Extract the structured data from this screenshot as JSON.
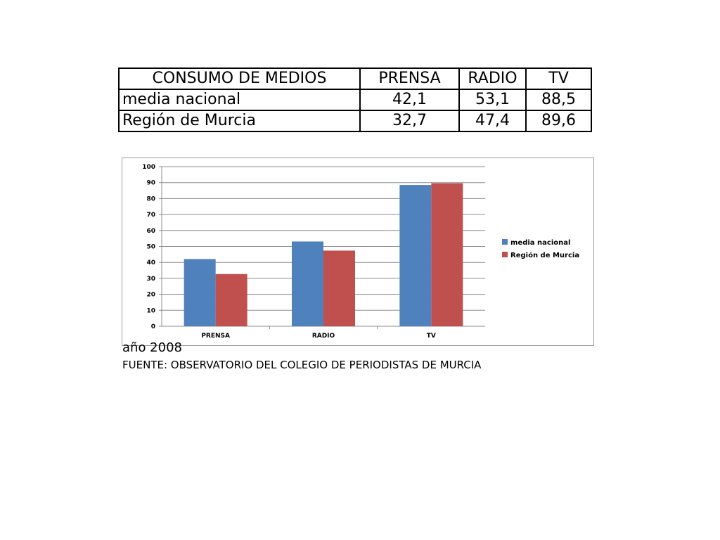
{
  "table": {
    "headers": [
      "CONSUMO DE MEDIOS",
      "PRENSA",
      "RADIO",
      "TV"
    ],
    "rows": [
      {
        "label": "media nacional",
        "values": [
          "42,1",
          "53,1",
          "88,5"
        ]
      },
      {
        "label": "Región de Murcia",
        "values": [
          "32,7",
          "47,4",
          "89,6"
        ]
      }
    ]
  },
  "chart_data": {
    "type": "bar",
    "categories": [
      "PRENSA",
      "RADIO",
      "TV"
    ],
    "series": [
      {
        "name": "media nacional",
        "values": [
          42.1,
          53.1,
          88.5
        ],
        "color": "#4F81BD"
      },
      {
        "name": "Región de Murcia",
        "values": [
          32.7,
          47.4,
          89.6
        ],
        "color": "#C0504D"
      }
    ],
    "ylim": [
      0,
      100
    ],
    "yticks": [
      0,
      10,
      20,
      30,
      40,
      50,
      60,
      70,
      80,
      90,
      100
    ],
    "grid": true,
    "legend_position": "right"
  },
  "notes": {
    "year": "año 2008",
    "source": "FUENTE: OBSERVATORIO DEL COLEGIO DE PERIODISTAS DE MURCIA"
  }
}
